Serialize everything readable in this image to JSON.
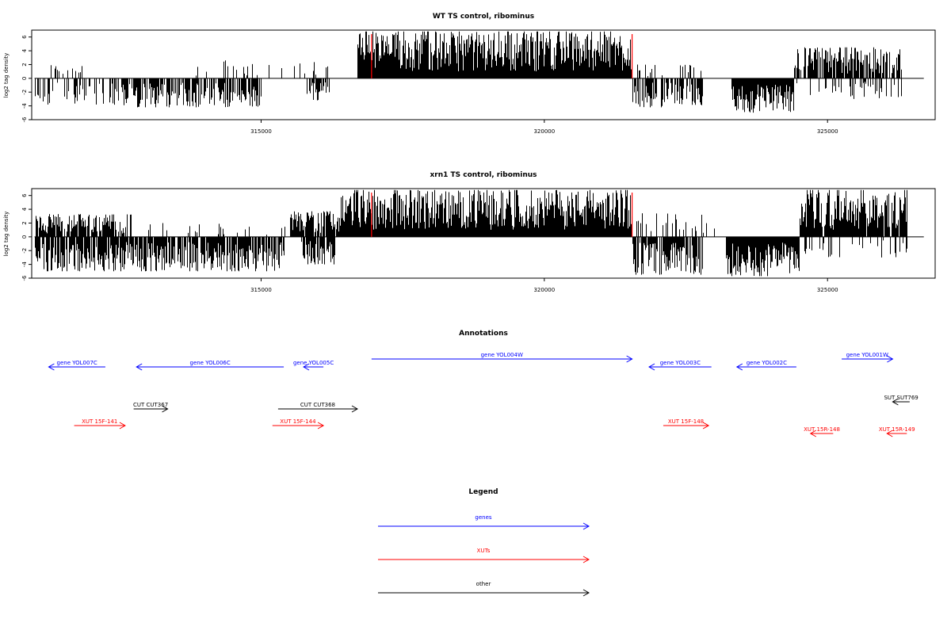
{
  "colors": {
    "genes": "#0000ff",
    "xuts": "#ff0000",
    "other": "#000000",
    "signal": "#000000",
    "marker": "#ff0000"
  },
  "tracks": [
    {
      "title": "WT TS control, ribominus",
      "ylabel": "log2 tag density"
    },
    {
      "title": "xrn1 TS control, ribominus",
      "ylabel": "log2 tag density"
    }
  ],
  "chart_data": [
    {
      "type": "bar",
      "title": "WT TS control, ribominus",
      "ylabel": "log2 tag density",
      "xlim": [
        310950,
        326900
      ],
      "ylim": [
        -6,
        7
      ],
      "x_ticks": [
        315000,
        320000,
        325000
      ],
      "x_tick_labels": [
        "315000",
        "320000",
        "325000"
      ],
      "y_ticks": [
        -6,
        -4,
        -2,
        0,
        2,
        4,
        6
      ],
      "y_tick_labels": [
        "-6",
        "-4",
        "-2",
        "0",
        "2",
        "4",
        "6"
      ],
      "markers": [
        316950,
        321550
      ],
      "segments": [
        {
          "from": 311200,
          "to": 311900,
          "sign": 1,
          "max": 2.1,
          "density": 0.3
        },
        {
          "from": 311000,
          "to": 312300,
          "sign": -1,
          "max": 4.0,
          "density": 0.35
        },
        {
          "from": 312300,
          "to": 315000,
          "sign": -1,
          "max": 4.2,
          "density": 0.75
        },
        {
          "from": 313800,
          "to": 316200,
          "sign": 1,
          "max": 2.6,
          "density": 0.1
        },
        {
          "from": 315800,
          "to": 316200,
          "sign": -1,
          "max": 3.2,
          "density": 0.7
        },
        {
          "from": 316700,
          "to": 321550,
          "sign": 1,
          "max": 6.8,
          "density": 1.0
        },
        {
          "from": 321550,
          "to": 322800,
          "sign": -1,
          "max": 4.2,
          "density": 0.7
        },
        {
          "from": 321600,
          "to": 322800,
          "sign": 1,
          "max": 2.0,
          "density": 0.12
        },
        {
          "from": 323300,
          "to": 324400,
          "sign": -1,
          "max": 5.0,
          "density": 1.0
        },
        {
          "from": 324400,
          "to": 325300,
          "sign": -1,
          "max": 2.5,
          "density": 0.2
        },
        {
          "from": 324400,
          "to": 326300,
          "sign": 1,
          "max": 4.5,
          "density": 0.75
        },
        {
          "from": 325300,
          "to": 326300,
          "sign": -1,
          "max": 3.0,
          "density": 0.25
        }
      ]
    },
    {
      "type": "bar",
      "title": "xrn1 TS control, ribominus",
      "ylabel": "log2 tag density",
      "xlim": [
        310950,
        326900
      ],
      "ylim": [
        -6,
        7
      ],
      "x_ticks": [
        315000,
        320000,
        325000
      ],
      "x_tick_labels": [
        "315000",
        "320000",
        "325000"
      ],
      "y_ticks": [
        -6,
        -4,
        -2,
        0,
        2,
        4,
        6
      ],
      "y_tick_labels": [
        "-6",
        "-4",
        "-2",
        "0",
        "2",
        "4",
        "6"
      ],
      "markers": [
        316950,
        321550
      ],
      "segments": [
        {
          "from": 311000,
          "to": 312700,
          "sign": 1,
          "max": 3.3,
          "density": 0.8
        },
        {
          "from": 311000,
          "to": 312700,
          "sign": -1,
          "max": 5.0,
          "density": 0.85
        },
        {
          "from": 312700,
          "to": 315500,
          "sign": 1,
          "max": 2.0,
          "density": 0.1
        },
        {
          "from": 312700,
          "to": 315400,
          "sign": -1,
          "max": 5.0,
          "density": 0.8
        },
        {
          "from": 315500,
          "to": 316400,
          "sign": 1,
          "max": 3.7,
          "density": 0.85
        },
        {
          "from": 315700,
          "to": 316300,
          "sign": -1,
          "max": 4.0,
          "density": 0.85
        },
        {
          "from": 316400,
          "to": 321550,
          "sign": 1,
          "max": 6.8,
          "density": 1.0
        },
        {
          "from": 321550,
          "to": 322800,
          "sign": -1,
          "max": 5.5,
          "density": 0.9
        },
        {
          "from": 321600,
          "to": 323200,
          "sign": 1,
          "max": 3.5,
          "density": 0.2
        },
        {
          "from": 323200,
          "to": 324500,
          "sign": -1,
          "max": 5.7,
          "density": 1.0
        },
        {
          "from": 324500,
          "to": 326400,
          "sign": 1,
          "max": 6.8,
          "density": 0.95
        },
        {
          "from": 324500,
          "to": 326400,
          "sign": -1,
          "max": 3.0,
          "density": 0.2
        }
      ]
    }
  ],
  "annotations": {
    "title": "Annotations",
    "features": [
      {
        "label": "gene YOL007C",
        "start": 311250,
        "end": 312250,
        "strand": "-",
        "type": "gene"
      },
      {
        "label": "gene YOL006C",
        "start": 312800,
        "end": 315400,
        "strand": "-",
        "type": "gene"
      },
      {
        "label": "gene YOL005C",
        "start": 315750,
        "end": 316100,
        "strand": "-",
        "type": "gene"
      },
      {
        "label": "gene YOL004W",
        "start": 316950,
        "end": 321550,
        "strand": "+",
        "type": "gene"
      },
      {
        "label": "gene YOL003C",
        "start": 321850,
        "end": 322950,
        "strand": "-",
        "type": "gene"
      },
      {
        "label": "gene YOL002C",
        "start": 323400,
        "end": 324450,
        "strand": "-",
        "type": "gene"
      },
      {
        "label": "gene YOL001W",
        "start": 325250,
        "end": 326150,
        "strand": "+",
        "type": "gene"
      },
      {
        "label": "CUT CUT367",
        "start": 312750,
        "end": 313350,
        "strand": "+",
        "type": "other"
      },
      {
        "label": "CUT CUT368",
        "start": 315300,
        "end": 316700,
        "strand": "+",
        "type": "other"
      },
      {
        "label": "SUT SUT769",
        "start": 326150,
        "end": 326450,
        "strand": "-",
        "type": "other"
      },
      {
        "label": "XUT 15F-141",
        "start": 311700,
        "end": 312600,
        "strand": "+",
        "type": "xut"
      },
      {
        "label": "XUT 15F-144",
        "start": 315200,
        "end": 316100,
        "strand": "+",
        "type": "xut"
      },
      {
        "label": "XUT 15F-148",
        "start": 322100,
        "end": 322900,
        "strand": "+",
        "type": "xut"
      },
      {
        "label": "XUT 15R-148",
        "start": 324700,
        "end": 325100,
        "strand": "-",
        "type": "xut"
      },
      {
        "label": "XUT 15R-149",
        "start": 326050,
        "end": 326400,
        "strand": "-",
        "type": "xut"
      }
    ]
  },
  "legend": {
    "title": "Legend",
    "items": [
      {
        "label": "genes",
        "type": "gene"
      },
      {
        "label": "XUTs",
        "type": "xut"
      },
      {
        "label": "other",
        "type": "other"
      }
    ]
  }
}
